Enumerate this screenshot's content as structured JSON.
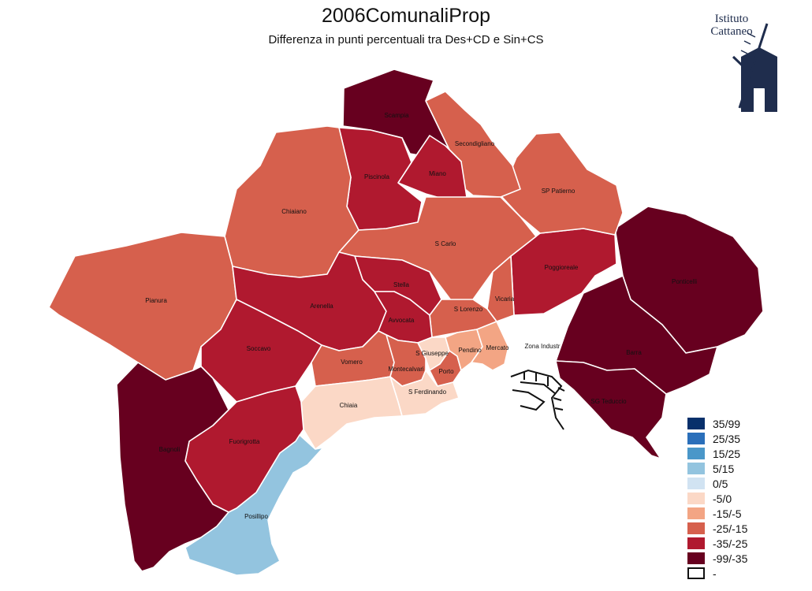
{
  "title": "2006ComunaliProp",
  "subtitle": "Differenza in punti percentuali tra Des+CD e Sin+CS",
  "logo": {
    "line1": "Istituto",
    "line2": "Cattaneo"
  },
  "legend": [
    {
      "label": "35/99",
      "color": "#08306b"
    },
    {
      "label": "25/35",
      "color": "#2a6fba"
    },
    {
      "label": "15/25",
      "color": "#4a97c9"
    },
    {
      "label": "5/15",
      "color": "#93c4df"
    },
    {
      "label": "0/5",
      "color": "#d1e3f2"
    },
    {
      "label": "-5/0",
      "color": "#fbd8c6"
    },
    {
      "label": "-15/-5",
      "color": "#f3a584"
    },
    {
      "label": "-25/-15",
      "color": "#d6604d"
    },
    {
      "label": "-35/-25",
      "color": "#b0192f"
    },
    {
      "label": "-99/-35",
      "color": "#67001f"
    },
    {
      "label": "-",
      "color": "#ffffff"
    }
  ],
  "districts": [
    {
      "name": "Scampia",
      "class": "-99/-35"
    },
    {
      "name": "Secondigliano",
      "class": "-25/-15"
    },
    {
      "name": "Piscinola",
      "class": "-35/-25"
    },
    {
      "name": "Miano",
      "class": "-35/-25"
    },
    {
      "name": "SP Patierno",
      "class": "-25/-15"
    },
    {
      "name": "Chiaiano",
      "class": "-25/-15"
    },
    {
      "name": "S Carlo",
      "class": "-25/-15"
    },
    {
      "name": "Poggioreale",
      "class": "-35/-25"
    },
    {
      "name": "Ponticelli",
      "class": "-99/-35"
    },
    {
      "name": "Pianura",
      "class": "-25/-15"
    },
    {
      "name": "Arenella",
      "class": "-35/-25"
    },
    {
      "name": "Stella",
      "class": "-35/-25"
    },
    {
      "name": "S Lorenzo",
      "class": "-25/-15"
    },
    {
      "name": "Vicaria",
      "class": "-25/-15"
    },
    {
      "name": "Avvocata",
      "class": "-35/-25"
    },
    {
      "name": "Zona Industr",
      "class": "-"
    },
    {
      "name": "Barra",
      "class": "-99/-35"
    },
    {
      "name": "Soccavo",
      "class": "-35/-25"
    },
    {
      "name": "Pendino",
      "class": "-15/-5"
    },
    {
      "name": "Mercato",
      "class": "-15/-5"
    },
    {
      "name": "S Giuseppe",
      "class": "-5/0"
    },
    {
      "name": "Vomero",
      "class": "-25/-15"
    },
    {
      "name": "Montecalvari",
      "class": "-25/-15"
    },
    {
      "name": "Porto",
      "class": "-25/-15"
    },
    {
      "name": "S Ferdinando",
      "class": "-5/0"
    },
    {
      "name": "Chiaia",
      "class": "-5/0"
    },
    {
      "name": "SG Teduccio",
      "class": "-99/-35"
    },
    {
      "name": "Fuorigrotta",
      "class": "-35/-25"
    },
    {
      "name": "Bagnoli",
      "class": "-99/-35"
    },
    {
      "name": "Posillipo",
      "class": "5/15"
    }
  ]
}
